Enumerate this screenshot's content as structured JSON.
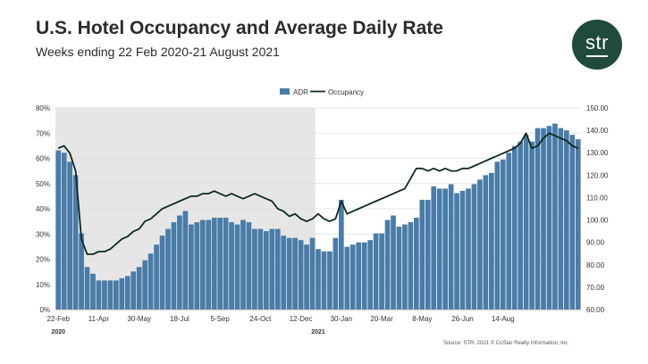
{
  "header": {
    "title": "U.S. Hotel Occupancy and Average Daily Rate",
    "subtitle": "Weeks ending 22 Feb 2020-21 August 2021",
    "logo_text": "str",
    "logo_color": "#1f4a3c"
  },
  "source": "Source: STR. 2021 © CoStar Realty Information, Inc.",
  "colors": {
    "bar": "#4a7ca8",
    "line": "#0d2a20",
    "shade": "#e6e6e6",
    "grid": "#dddddd"
  },
  "chart_data": {
    "type": "bar",
    "legend": [
      "ADR",
      "Occupancy"
    ],
    "legend_position": "top",
    "x_tick_labels": [
      "22-Feb",
      "11-Apr",
      "30-May",
      "18-Jul",
      "5-Sep",
      "24-Oct",
      "12-Dec",
      "30-Jan",
      "20-Mar",
      "8-May",
      "26-Jun",
      "14-Aug"
    ],
    "year_labels": [
      "2020",
      "2021"
    ],
    "y_left_ticks": [
      "0%",
      "10%",
      "20%",
      "30%",
      "40%",
      "50%",
      "60%",
      "70%",
      "80%"
    ],
    "y_left_range": [
      0,
      80
    ],
    "y_right_ticks": [
      "60.00",
      "70.00",
      "80.00",
      "90.00",
      "100.00",
      "110.00",
      "120.00",
      "130.00",
      "140.00",
      "150.00"
    ],
    "y_right_range": [
      60,
      150
    ],
    "shaded_range_weeks": [
      0,
      45
    ],
    "series": [
      {
        "name": "ADR",
        "axis": "right",
        "values": [
          131,
          130,
          126,
          120,
          94,
          79,
          76,
          73,
          73,
          73,
          73,
          74,
          75,
          77,
          79,
          82,
          85,
          89,
          93,
          96,
          99,
          102,
          104,
          98,
          99,
          100,
          100,
          101,
          101,
          101,
          99,
          98,
          100,
          99,
          96,
          96,
          95,
          96,
          96,
          93,
          92,
          92,
          91,
          89,
          92,
          87,
          86,
          86,
          92,
          109,
          88,
          89,
          90,
          90,
          91,
          94,
          94,
          100,
          102,
          97,
          98,
          99,
          101,
          109,
          109,
          115,
          114,
          114,
          116,
          112,
          113,
          114,
          116,
          118,
          120,
          121,
          126,
          127,
          130,
          133,
          135,
          138,
          135,
          141,
          141,
          142,
          143,
          141,
          140,
          138,
          136
        ]
      },
      {
        "name": "Occupancy",
        "axis": "left",
        "values": [
          64,
          65,
          62,
          55,
          28,
          22,
          22,
          23,
          23,
          24,
          26,
          28,
          29,
          31,
          32,
          35,
          36,
          38,
          40,
          41,
          42,
          43,
          44,
          45,
          45,
          46,
          46,
          47,
          46,
          45,
          46,
          45,
          44,
          45,
          46,
          45,
          44,
          43,
          40,
          39,
          37,
          38,
          36,
          35,
          36,
          38,
          36,
          35,
          36,
          43,
          38,
          39,
          40,
          41,
          42,
          43,
          44,
          45,
          46,
          47,
          48,
          52,
          56,
          56,
          55,
          56,
          55,
          56,
          55,
          55,
          56,
          56,
          57,
          58,
          59,
          60,
          61,
          62,
          63,
          64,
          66,
          70,
          64,
          65,
          68,
          70,
          69,
          68,
          67,
          65,
          64
        ]
      }
    ]
  }
}
